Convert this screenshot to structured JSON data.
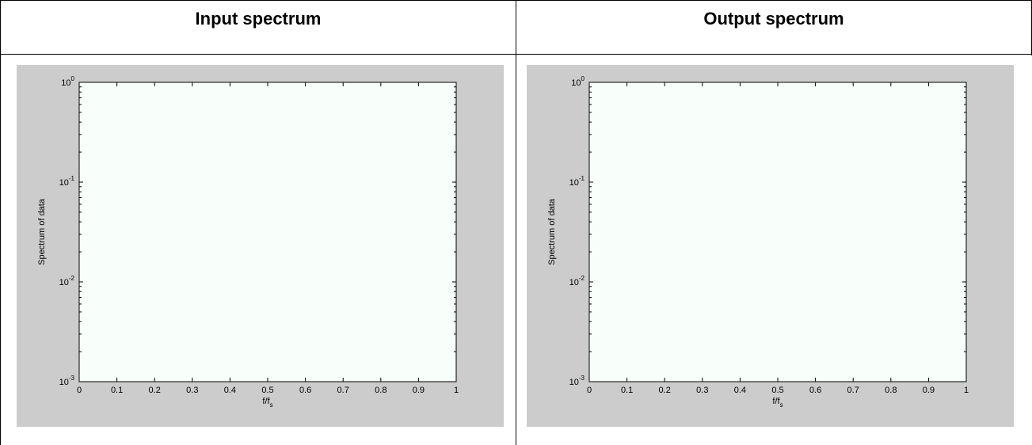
{
  "panels": [
    {
      "header": "Input spectrum"
    },
    {
      "header": "Output spectrum"
    }
  ],
  "chart_data": [
    {
      "type": "line",
      "title": "",
      "xlabel": "f/f",
      "xlabel_sub": "s",
      "ylabel": "Spectrum of data",
      "xlim": [
        0,
        1
      ],
      "ylim": [
        0.001,
        1
      ],
      "yscale": "log",
      "xticks": [
        "0",
        "0.1",
        "0.2",
        "0.3",
        "0.4",
        "0.5",
        "0.6",
        "0.7",
        "0.8",
        "0.9",
        "1"
      ],
      "yticks": [
        {
          "value": 1,
          "base": "10",
          "exp": "0"
        },
        {
          "value": 0.1,
          "base": "10",
          "exp": "-1"
        },
        {
          "value": 0.01,
          "base": "10",
          "exp": "-2"
        },
        {
          "value": 0.001,
          "base": "10",
          "exp": "-3"
        }
      ],
      "series": [],
      "plot_bg": "#f8fffa",
      "figure_bg": "#cccccc"
    },
    {
      "type": "line",
      "title": "",
      "xlabel": "f/f",
      "xlabel_sub": "s",
      "ylabel": "Spectrum of data",
      "xlim": [
        0,
        1
      ],
      "ylim": [
        0.001,
        1
      ],
      "yscale": "log",
      "xticks": [
        "0",
        "0.1",
        "0.2",
        "0.3",
        "0.4",
        "0.5",
        "0.6",
        "0.7",
        "0.8",
        "0.9",
        "1"
      ],
      "yticks": [
        {
          "value": 1,
          "base": "10",
          "exp": "0"
        },
        {
          "value": 0.1,
          "base": "10",
          "exp": "-1"
        },
        {
          "value": 0.01,
          "base": "10",
          "exp": "-2"
        },
        {
          "value": 0.001,
          "base": "10",
          "exp": "-3"
        }
      ],
      "series": [],
      "plot_bg": "#f8fffa",
      "figure_bg": "#cccccc"
    }
  ]
}
